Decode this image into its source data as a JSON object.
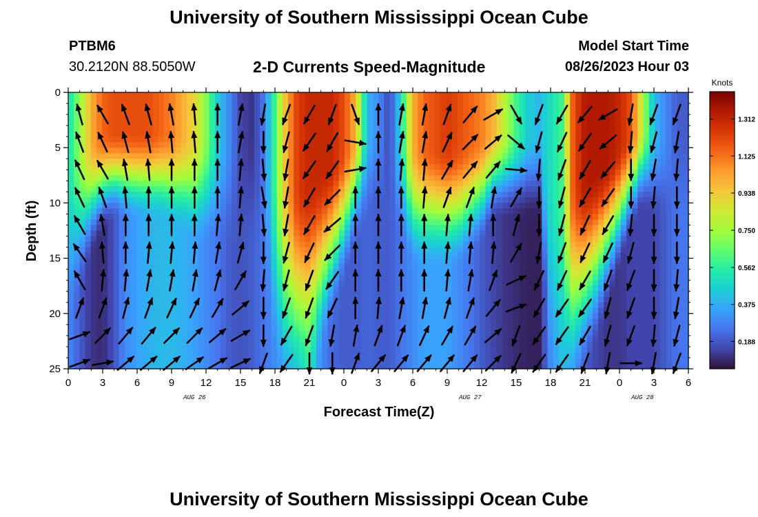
{
  "header": {
    "title": "University of Southern Mississippi Ocean Cube",
    "station_name": "PTBM6",
    "station_coords": "30.2120N  88.5050W",
    "plot_title": "2-D Currents Speed-Magnitude",
    "model_label": "Model Start Time",
    "model_time": "08/26/2023 Hour 03"
  },
  "footer": {
    "title": "University of Southern Mississippi Ocean Cube"
  },
  "chart_data": {
    "type": "heatmap",
    "title": "2-D Currents Speed-Magnitude",
    "xlabel": "Forecast Time(Z)",
    "ylabel": "Depth (ft)",
    "x_ticks": [
      "0",
      "3",
      "6",
      "9",
      "12",
      "15",
      "18",
      "21",
      "0",
      "3",
      "6",
      "9",
      "12",
      "15",
      "18",
      "21",
      "0",
      "3",
      "6"
    ],
    "x_hours": [
      0,
      54
    ],
    "date_labels": [
      {
        "label": "AUG 26",
        "hour": 11
      },
      {
        "label": "AUG 27",
        "hour": 35
      },
      {
        "label": "AUG 28",
        "hour": 50
      }
    ],
    "y_ticks": [
      0,
      5,
      10,
      15,
      20,
      25
    ],
    "ylim": [
      0,
      25
    ],
    "y_inverted": true,
    "colorbar": {
      "label": "Knots",
      "ticks": [
        "0.188",
        "0.375",
        "0.562",
        "0.750",
        "0.938",
        "1.125",
        "1.312"
      ],
      "vmin": 0.05,
      "vmax": 1.45,
      "colors": [
        "#30123b",
        "#4145ab",
        "#4675ed",
        "#39a2fc",
        "#1bcfd4",
        "#24eca6",
        "#61fc6c",
        "#a4fc3b",
        "#d1e834",
        "#f3c63a",
        "#fe9b2d",
        "#f36315",
        "#d93806",
        "#b11901",
        "#7a0402"
      ]
    },
    "speed_profiles": {
      "hours": [
        0,
        1,
        2,
        3,
        4,
        5,
        6,
        7,
        8,
        9,
        10,
        11,
        12,
        13,
        14,
        15,
        16,
        17,
        18,
        19,
        20,
        21,
        22,
        23,
        24,
        25,
        26,
        27,
        28,
        29,
        30,
        31,
        32,
        33,
        34,
        35,
        36,
        37,
        38,
        39,
        40,
        41,
        42,
        43,
        44,
        45,
        46,
        47,
        48,
        49,
        50,
        51,
        52,
        53,
        54
      ],
      "surface": [
        0.5,
        0.72,
        1.0,
        1.15,
        1.2,
        1.2,
        1.2,
        1.2,
        1.15,
        1.1,
        1.0,
        0.9,
        0.7,
        0.45,
        0.3,
        0.15,
        0.12,
        0.25,
        0.6,
        1.0,
        1.25,
        1.3,
        1.3,
        1.3,
        1.2,
        1.0,
        0.4,
        0.3,
        0.15,
        0.5,
        1.0,
        1.15,
        1.2,
        1.25,
        1.2,
        1.15,
        1.1,
        1.0,
        0.8,
        0.6,
        0.45,
        0.4,
        0.5,
        0.6,
        1.2,
        1.35,
        1.35,
        1.35,
        1.3,
        1.2,
        0.8,
        0.4,
        0.3,
        0.2,
        0.2
      ],
      "bottom": [
        0.3,
        0.2,
        0.12,
        0.1,
        0.18,
        0.3,
        0.35,
        0.38,
        0.4,
        0.4,
        0.38,
        0.35,
        0.3,
        0.25,
        0.2,
        0.18,
        0.2,
        0.25,
        0.3,
        0.35,
        0.4,
        0.55,
        0.3,
        0.22,
        0.2,
        0.2,
        0.22,
        0.2,
        0.2,
        0.25,
        0.3,
        0.35,
        0.35,
        0.35,
        0.3,
        0.25,
        0.2,
        0.15,
        0.12,
        0.1,
        0.08,
        0.08,
        0.3,
        0.4,
        0.3,
        0.2,
        0.15,
        0.12,
        0.12,
        0.15,
        0.15,
        0.15,
        0.2,
        0.25,
        0.25
      ],
      "mixing_depth": [
        18,
        16,
        13,
        11,
        10,
        10,
        10,
        10,
        10,
        10.5,
        11,
        12,
        12,
        12,
        12,
        12,
        12,
        14,
        22,
        24,
        24,
        23,
        21,
        18,
        15,
        12,
        10,
        9,
        10,
        12,
        14,
        14,
        14,
        14,
        14,
        13,
        12,
        10,
        10,
        10,
        10,
        10,
        23,
        24,
        24,
        22,
        20,
        17,
        14,
        11,
        9,
        10,
        10,
        10,
        10
      ]
    },
    "arrow_hours": [
      1,
      3,
      5,
      7,
      9,
      11,
      13,
      15,
      17,
      19,
      21,
      23,
      25,
      27,
      29,
      31,
      33,
      35,
      37,
      39,
      41,
      43,
      45,
      47,
      49,
      51,
      53
    ],
    "arrow_depths": [
      2,
      4.5,
      7,
      9.5,
      12,
      14.5,
      17,
      19.5,
      22,
      24.5
    ],
    "arrow_directions_deg": [
      [
        345,
        340,
        335,
        335,
        330,
        325,
        330,
        20,
        70,
        70
      ],
      [
        330,
        335,
        330,
        340,
        350,
        355,
        5,
        20,
        45,
        80
      ],
      [
        340,
        345,
        350,
        355,
        0,
        0,
        5,
        15,
        40,
        50
      ],
      [
        345,
        350,
        355,
        0,
        0,
        5,
        10,
        20,
        40,
        50
      ],
      [
        350,
        355,
        0,
        0,
        0,
        5,
        10,
        25,
        45,
        50
      ],
      [
        355,
        355,
        0,
        0,
        0,
        5,
        10,
        25,
        45,
        55
      ],
      [
        0,
        0,
        0,
        0,
        5,
        10,
        15,
        30,
        50,
        60
      ],
      [
        10,
        10,
        5,
        5,
        5,
        15,
        30,
        50,
        60,
        65
      ],
      [
        190,
        180,
        175,
        170,
        175,
        180,
        185,
        180,
        180,
        200
      ],
      [
        200,
        195,
        190,
        190,
        190,
        195,
        195,
        200,
        210,
        215
      ],
      [
        210,
        215,
        215,
        210,
        210,
        205,
        200,
        200,
        200,
        180
      ],
      [
        200,
        210,
        215,
        225,
        230,
        225,
        215,
        205,
        190,
        180
      ],
      [
        160,
        100,
        80,
        0,
        0,
        0,
        0,
        0,
        10,
        20
      ],
      [
        0,
        0,
        0,
        0,
        0,
        0,
        0,
        5,
        20,
        40
      ],
      [
        10,
        10,
        5,
        0,
        0,
        0,
        0,
        10,
        20,
        40
      ],
      [
        10,
        10,
        5,
        5,
        0,
        0,
        0,
        10,
        25,
        40
      ],
      [
        20,
        25,
        30,
        20,
        5,
        5,
        5,
        15,
        30,
        40
      ],
      [
        40,
        45,
        40,
        20,
        5,
        5,
        10,
        20,
        30,
        40
      ],
      [
        60,
        50,
        40,
        10,
        0,
        5,
        20,
        40,
        50,
        45
      ],
      [
        150,
        130,
        95,
        30,
        15,
        30,
        65,
        70,
        200,
        205
      ],
      [
        200,
        195,
        185,
        180,
        180,
        190,
        205,
        210,
        215,
        215
      ],
      [
        210,
        205,
        200,
        195,
        195,
        200,
        205,
        215,
        215,
        215
      ],
      [
        220,
        215,
        210,
        210,
        205,
        205,
        210,
        215,
        210,
        200
      ],
      [
        240,
        230,
        220,
        215,
        210,
        205,
        200,
        195,
        195,
        190
      ],
      [
        190,
        185,
        180,
        180,
        185,
        195,
        200,
        200,
        200,
        90
      ],
      [
        200,
        195,
        190,
        185,
        180,
        180,
        180,
        180,
        185,
        190
      ],
      [
        200,
        190,
        185,
        180,
        180,
        180,
        185,
        190,
        195,
        200
      ]
    ]
  }
}
